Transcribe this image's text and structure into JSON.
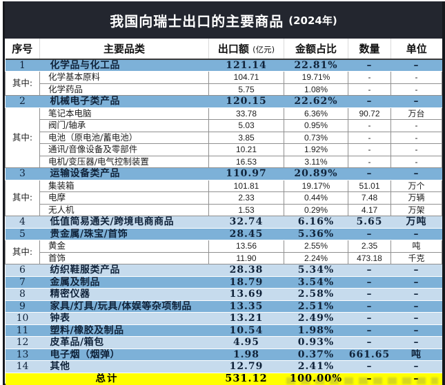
{
  "title": {
    "main": "我国向瑞士出口的主要商品",
    "year": "(2024年)"
  },
  "table": {
    "headers": {
      "no": "序号",
      "category": "主要品类",
      "export": "出口额",
      "export_unit": "(亿元)",
      "share": "金额占比",
      "quantity": "数量",
      "unit": "单位"
    },
    "rows": [
      {
        "kind": "main",
        "no": "1",
        "category": "化学品与化工品",
        "export": "121.14",
        "share": "22.81%",
        "qty": "–",
        "unit": "–",
        "shade": "medium"
      },
      {
        "kind": "sub",
        "group_start": true,
        "group_label": "其中:",
        "group_size": 2,
        "category": "化学基本原料",
        "export": "104.71",
        "share": "19.71%",
        "qty": "-",
        "unit": "-"
      },
      {
        "kind": "sub",
        "category": "化学药品",
        "export": "5.75",
        "share": "1.08%",
        "qty": "-",
        "unit": "-"
      },
      {
        "kind": "main",
        "no": "2",
        "category": "机械电子类产品",
        "export": "120.15",
        "share": "22.62%",
        "qty": "–",
        "unit": "–",
        "shade": "medium"
      },
      {
        "kind": "sub",
        "group_start": true,
        "group_label": "其中:",
        "group_size": 5,
        "category": "笔记本电脑",
        "export": "33.78",
        "share": "6.36%",
        "qty": "90.72",
        "unit": "万台"
      },
      {
        "kind": "sub",
        "category": "阀门/轴承",
        "export": "5.03",
        "share": "0.95%",
        "qty": "-",
        "unit": "-"
      },
      {
        "kind": "sub",
        "category": "电池（原电池/蓄电池）",
        "export": "3.85",
        "share": "0.73%",
        "qty": "-",
        "unit": "-"
      },
      {
        "kind": "sub",
        "category": "通讯/音像设备及零部件",
        "export": "10.21",
        "share": "1.92%",
        "qty": "-",
        "unit": "-"
      },
      {
        "kind": "sub",
        "category": "电机/变压器/电气控制装置",
        "export": "16.53",
        "share": "3.11%",
        "qty": "-",
        "unit": "-"
      },
      {
        "kind": "main",
        "no": "3",
        "category": "运输设备类产品",
        "export": "110.97",
        "share": "20.89%",
        "qty": "–",
        "unit": "–",
        "shade": "medium"
      },
      {
        "kind": "sub",
        "group_start": true,
        "group_label": "其中:",
        "group_size": 3,
        "category": "集装箱",
        "export": "101.81",
        "share": "19.17%",
        "qty": "51.01",
        "unit": "万个"
      },
      {
        "kind": "sub",
        "category": "电摩",
        "export": "2.33",
        "share": "0.44%",
        "qty": "7.48",
        "unit": "万辆"
      },
      {
        "kind": "sub",
        "category": "无人机",
        "export": "1.53",
        "share": "0.29%",
        "qty": "4.17",
        "unit": "万架"
      },
      {
        "kind": "main",
        "no": "4",
        "category": "低值简易通关/跨境电商商品",
        "export": "32.74",
        "share": "6.16%",
        "qty": "5.65",
        "unit": "万吨",
        "shade": "light"
      },
      {
        "kind": "main",
        "no": "5",
        "category": "贵金属/珠宝/首饰",
        "export": "28.45",
        "share": "5.36%",
        "qty": "–",
        "unit": "–",
        "shade": "medium"
      },
      {
        "kind": "sub",
        "group_start": true,
        "group_label": "其中:",
        "group_size": 2,
        "category": "黄金",
        "export": "13.56",
        "share": "2.55%",
        "qty": "2.35",
        "unit": "吨"
      },
      {
        "kind": "sub",
        "category": "首饰",
        "export": "11.90",
        "share": "2.24%",
        "qty": "473.18",
        "unit": "千克"
      },
      {
        "kind": "main",
        "no": "6",
        "category": "纺织鞋服类产品",
        "export": "28.38",
        "share": "5.34%",
        "qty": "–",
        "unit": "–",
        "shade": "light"
      },
      {
        "kind": "main",
        "no": "7",
        "category": "金属及制品",
        "export": "18.79",
        "share": "3.54%",
        "qty": "–",
        "unit": "–",
        "shade": "medium"
      },
      {
        "kind": "main",
        "no": "8",
        "category": "精密仪器",
        "export": "13.69",
        "share": "2.58%",
        "qty": "–",
        "unit": "–",
        "shade": "light"
      },
      {
        "kind": "main",
        "no": "9",
        "category": "家具/灯具/玩具/体娱等杂项制品",
        "export": "13.35",
        "share": "2.51%",
        "qty": "–",
        "unit": "–",
        "shade": "medium"
      },
      {
        "kind": "main",
        "no": "10",
        "category": "钟表",
        "export": "13.21",
        "share": "2.49%",
        "qty": "–",
        "unit": "–",
        "shade": "light"
      },
      {
        "kind": "main",
        "no": "11",
        "category": "塑料/橡胶及制品",
        "export": "10.54",
        "share": "1.98%",
        "qty": "–",
        "unit": "–",
        "shade": "medium"
      },
      {
        "kind": "main",
        "no": "12",
        "category": "皮革品/箱包",
        "export": "4.95",
        "share": "0.93%",
        "qty": "–",
        "unit": "–",
        "shade": "light"
      },
      {
        "kind": "main",
        "no": "13",
        "category": "电子烟（烟弹）",
        "export": "1.98",
        "share": "0.37%",
        "qty": "661.65",
        "unit": "吨",
        "shade": "medium"
      },
      {
        "kind": "main",
        "no": "14",
        "category": "其他",
        "export": "12.79",
        "share": "2.41%",
        "qty": "–",
        "unit": "–",
        "shade": "light"
      },
      {
        "kind": "total",
        "label": "总计",
        "export": "531.12",
        "share": "100.00%",
        "qty": "–",
        "unit": "–"
      }
    ]
  },
  "chart_data": {
    "type": "table",
    "title": "我国向瑞士出口的主要商品 (2024年)",
    "columns": [
      "序号",
      "主要品类",
      "出口额(亿元)",
      "金额占比",
      "数量",
      "单位"
    ],
    "rows": [
      [
        "1",
        "化学品与化工品",
        "121.14",
        "22.81%",
        "–",
        "–"
      ],
      [
        "其中:",
        "化学基本原料",
        "104.71",
        "19.71%",
        "-",
        "-"
      ],
      [
        "其中:",
        "化学药品",
        "5.75",
        "1.08%",
        "-",
        "-"
      ],
      [
        "2",
        "机械电子类产品",
        "120.15",
        "22.62%",
        "–",
        "–"
      ],
      [
        "其中:",
        "笔记本电脑",
        "33.78",
        "6.36%",
        "90.72",
        "万台"
      ],
      [
        "其中:",
        "阀门/轴承",
        "5.03",
        "0.95%",
        "-",
        "-"
      ],
      [
        "其中:",
        "电池（原电池/蓄电池）",
        "3.85",
        "0.73%",
        "-",
        "-"
      ],
      [
        "其中:",
        "通讯/音像设备及零部件",
        "10.21",
        "1.92%",
        "-",
        "-"
      ],
      [
        "其中:",
        "电机/变压器/电气控制装置",
        "16.53",
        "3.11%",
        "-",
        "-"
      ],
      [
        "3",
        "运输设备类产品",
        "110.97",
        "20.89%",
        "–",
        "–"
      ],
      [
        "其中:",
        "集装箱",
        "101.81",
        "19.17%",
        "51.01",
        "万个"
      ],
      [
        "其中:",
        "电摩",
        "2.33",
        "0.44%",
        "7.48",
        "万辆"
      ],
      [
        "其中:",
        "无人机",
        "1.53",
        "0.29%",
        "4.17",
        "万架"
      ],
      [
        "4",
        "低值简易通关/跨境电商商品",
        "32.74",
        "6.16%",
        "5.65",
        "万吨"
      ],
      [
        "5",
        "贵金属/珠宝/首饰",
        "28.45",
        "5.36%",
        "–",
        "–"
      ],
      [
        "其中:",
        "黄金",
        "13.56",
        "2.55%",
        "2.35",
        "吨"
      ],
      [
        "其中:",
        "首饰",
        "11.90",
        "2.24%",
        "473.18",
        "千克"
      ],
      [
        "6",
        "纺织鞋服类产品",
        "28.38",
        "5.34%",
        "–",
        "–"
      ],
      [
        "7",
        "金属及制品",
        "18.79",
        "3.54%",
        "–",
        "–"
      ],
      [
        "8",
        "精密仪器",
        "13.69",
        "2.58%",
        "–",
        "–"
      ],
      [
        "9",
        "家具/灯具/玩具/体娱等杂项制品",
        "13.35",
        "2.51%",
        "–",
        "–"
      ],
      [
        "10",
        "钟表",
        "13.21",
        "2.49%",
        "–",
        "–"
      ],
      [
        "11",
        "塑料/橡胶及制品",
        "10.54",
        "1.98%",
        "–",
        "–"
      ],
      [
        "12",
        "皮革品/箱包",
        "4.95",
        "0.93%",
        "–",
        "–"
      ],
      [
        "13",
        "电子烟（烟弹）",
        "1.98",
        "0.37%",
        "661.65",
        "吨"
      ],
      [
        "14",
        "其他",
        "12.79",
        "2.41%",
        "–",
        "–"
      ],
      [
        "",
        "总计",
        "531.12",
        "100.00%",
        "–",
        "–"
      ]
    ]
  },
  "colors": {
    "title_bg": "#23262f",
    "row_medium": "#7db1d8",
    "row_light": "#c6dbed",
    "total_bg": "#ffff00",
    "main_text": "#10233a",
    "border_dark": "#16181d"
  }
}
